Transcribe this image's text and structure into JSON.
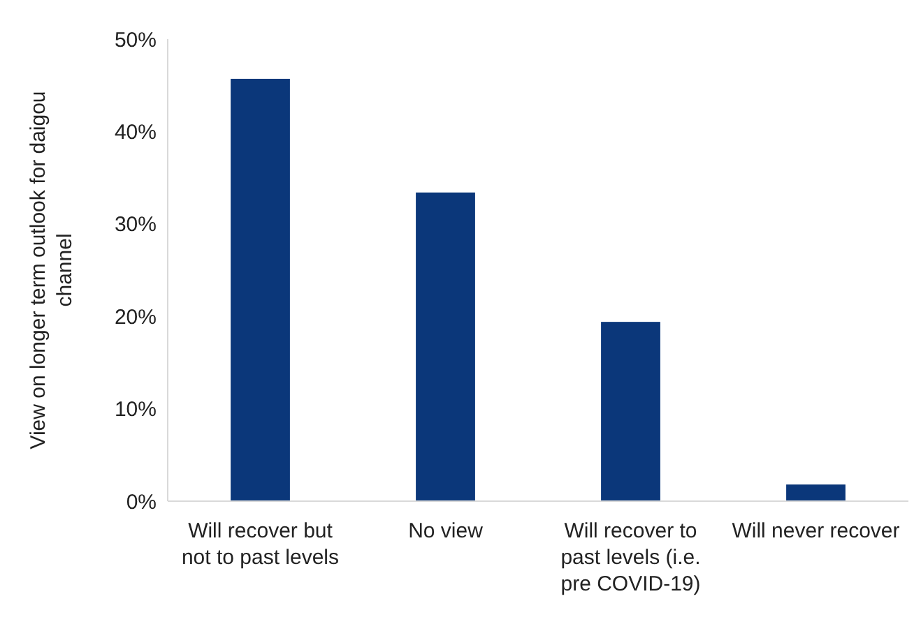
{
  "chart_data": {
    "type": "bar",
    "ylabel": "View on longer term outlook for daigou channel",
    "categories": [
      "Will recover but not to past levels",
      "No view",
      "Will recover to past levels (i.e. pre COVID-19)",
      "Will never recover"
    ],
    "values": [
      45.7,
      33.4,
      19.4,
      1.8
    ],
    "color": "#0b377a",
    "ylim": [
      0,
      50
    ],
    "yticks": [
      {
        "value": 0,
        "label": "0%"
      },
      {
        "value": 10,
        "label": "10%"
      },
      {
        "value": 20,
        "label": "20%"
      },
      {
        "value": 30,
        "label": "30%"
      },
      {
        "value": 40,
        "label": "40%"
      },
      {
        "value": 50,
        "label": "50%"
      }
    ],
    "grid": false
  }
}
